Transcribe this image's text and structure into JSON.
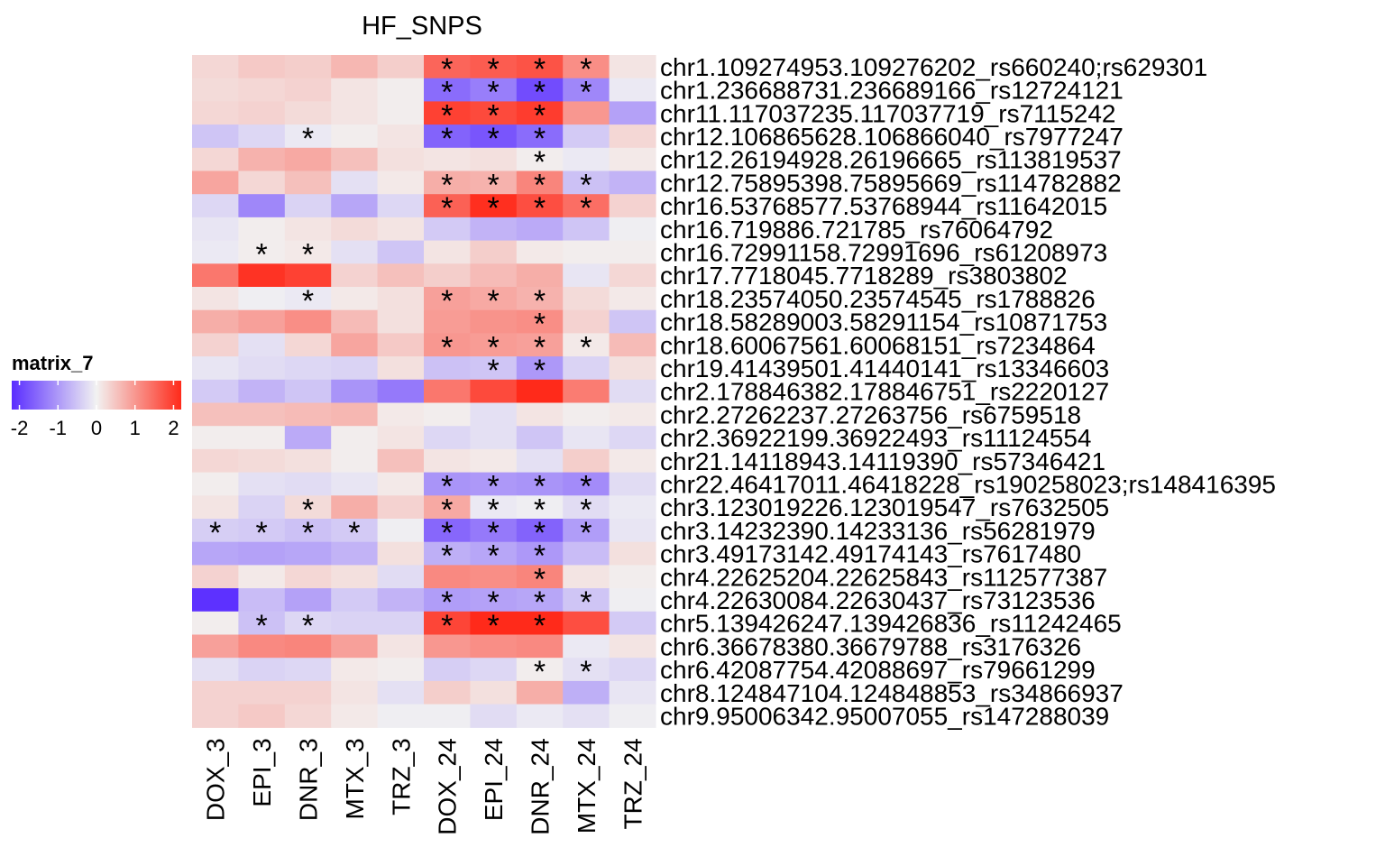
{
  "chart_data": {
    "type": "heatmap",
    "title": "HF_SNPS",
    "columns": [
      "DOX_3",
      "EPI_3",
      "DNR_3",
      "MTX_3",
      "TRZ_3",
      "DOX_24",
      "EPI_24",
      "DNR_24",
      "MTX_24",
      "TRZ_24"
    ],
    "rows": [
      "chr1.109274953.109276202_rs660240;rs629301",
      "chr1.236688731.236689166_rs12724121",
      "chr11.117037235.117037719_rs7115242",
      "chr12.106865628.106866040_rs7977247",
      "chr12.26194928.26196665_rs113819537",
      "chr12.75895398.75895669_rs114782882",
      "chr16.53768577.53768944_rs11642015",
      "chr16.719886.721785_rs76064792",
      "chr16.72991158.72991696_rs61208973",
      "chr17.7718045.7718289_rs3803802",
      "chr18.23574050.23574545_rs1788826",
      "chr18.58289003.58291154_rs10871753",
      "chr18.60067561.60068151_rs7234864",
      "chr19.41439501.41440141_rs13346603",
      "chr2.178846382.178846751_rs2220127",
      "chr2.27262237.27263756_rs6759518",
      "chr2.36922199.36922493_rs11124554",
      "chr21.14118943.14119390_rs57346421",
      "chr22.46417011.46418228_rs190258023;rs148416395",
      "chr3.123019226.123019547_rs7632505",
      "chr3.14232390.14233136_rs56281979",
      "chr3.49173142.49174143_rs7617480",
      "chr4.22625204.22625843_rs112577387",
      "chr4.22630084.22630437_rs73123536",
      "chr5.139426247.139426836_rs11242465",
      "chr6.36678380.36679788_rs3176326",
      "chr6.42087754.42088697_rs79661299",
      "chr8.124847104.124848853_rs34866937",
      "chr9.95006342.95007055_rs147288039"
    ],
    "values": [
      [
        0.3,
        0.45,
        0.4,
        0.65,
        0.4,
        1.55,
        1.65,
        1.75,
        1.1,
        0.15
      ],
      [
        0.25,
        0.3,
        0.35,
        0.15,
        0.05,
        -1.5,
        -1.3,
        -1.85,
        -1.2,
        -0.1
      ],
      [
        0.3,
        0.35,
        0.25,
        0.15,
        0.05,
        1.95,
        1.85,
        2.0,
        1.0,
        -0.9
      ],
      [
        -0.5,
        -0.3,
        -0.1,
        0.05,
        0.15,
        -1.6,
        -1.75,
        -1.5,
        -0.45,
        0.3
      ],
      [
        0.3,
        0.7,
        0.8,
        0.55,
        0.2,
        0.15,
        0.2,
        0.05,
        -0.1,
        0.1
      ],
      [
        0.85,
        0.3,
        0.55,
        -0.2,
        0.1,
        0.75,
        0.7,
        1.2,
        -0.55,
        -0.7
      ],
      [
        -0.3,
        -1.2,
        -0.35,
        -0.85,
        -0.3,
        1.6,
        2.15,
        1.8,
        1.45,
        0.35
      ],
      [
        -0.15,
        0.05,
        0.15,
        0.25,
        0.15,
        -0.45,
        -0.7,
        -0.8,
        -0.5,
        -0.05
      ],
      [
        -0.1,
        0.05,
        0.1,
        -0.2,
        -0.5,
        0.15,
        0.4,
        0.1,
        0.05,
        0.05
      ],
      [
        1.35,
        2.1,
        1.95,
        0.35,
        0.55,
        0.4,
        0.6,
        0.75,
        -0.15,
        0.3
      ],
      [
        0.15,
        -0.05,
        -0.1,
        0.1,
        0.2,
        0.9,
        0.8,
        0.7,
        0.25,
        0.1
      ],
      [
        0.75,
        0.9,
        1.1,
        0.6,
        0.2,
        0.95,
        1.05,
        1.1,
        0.35,
        -0.5
      ],
      [
        0.35,
        -0.2,
        0.3,
        0.85,
        0.45,
        1.0,
        0.95,
        0.9,
        0.1,
        0.6
      ],
      [
        -0.15,
        -0.25,
        -0.3,
        -0.35,
        0.2,
        -0.55,
        -0.5,
        -1.0,
        -0.35,
        0.2
      ],
      [
        -0.45,
        -0.7,
        -0.5,
        -1.05,
        -1.35,
        1.35,
        1.85,
        2.2,
        1.3,
        -0.25
      ],
      [
        0.55,
        0.55,
        0.6,
        0.65,
        0.1,
        0.05,
        -0.2,
        0.15,
        0.05,
        0.1
      ],
      [
        0.05,
        0.05,
        -0.8,
        0.05,
        0.15,
        -0.3,
        -0.2,
        -0.5,
        -0.15,
        -0.3
      ],
      [
        0.3,
        0.25,
        0.2,
        0.05,
        0.55,
        0.15,
        0.1,
        -0.2,
        0.4,
        0.1
      ],
      [
        0.05,
        -0.2,
        -0.25,
        -0.15,
        0.1,
        -1.05,
        -1.0,
        -1.05,
        -1.15,
        -0.25
      ],
      [
        0.15,
        -0.35,
        0.25,
        0.75,
        0.35,
        0.8,
        -0.1,
        -0.05,
        -0.25,
        -0.1
      ],
      [
        -0.4,
        -0.45,
        -0.55,
        -0.45,
        -0.05,
        -1.55,
        -1.35,
        -1.6,
        -0.95,
        -0.15
      ],
      [
        -0.85,
        -0.9,
        -0.85,
        -0.7,
        0.2,
        -0.75,
        -0.85,
        -1.0,
        -0.6,
        0.2
      ],
      [
        0.35,
        0.1,
        0.3,
        0.2,
        -0.25,
        1.15,
        1.1,
        1.2,
        0.15,
        0.05
      ],
      [
        -2.15,
        -0.6,
        -0.9,
        -0.45,
        -0.7,
        -0.95,
        -0.9,
        -0.85,
        -0.5,
        -0.05
      ],
      [
        0.05,
        -0.55,
        -0.3,
        -0.35,
        -0.35,
        1.9,
        2.25,
        2.25,
        1.8,
        -0.45
      ],
      [
        0.9,
        1.15,
        1.2,
        0.9,
        0.15,
        1.0,
        1.1,
        1.15,
        -0.1,
        0.15
      ],
      [
        -0.2,
        -0.35,
        -0.3,
        0.1,
        0.05,
        -0.4,
        -0.3,
        0.05,
        -0.2,
        -0.3
      ],
      [
        0.35,
        0.35,
        0.35,
        0.15,
        -0.2,
        0.4,
        0.2,
        0.75,
        -0.75,
        -0.15
      ],
      [
        0.35,
        0.45,
        0.3,
        0.1,
        -0.05,
        -0.05,
        -0.25,
        -0.1,
        -0.2,
        -0.05
      ]
    ],
    "significant": [
      [
        5,
        0
      ],
      [
        6,
        0
      ],
      [
        7,
        0
      ],
      [
        8,
        0
      ],
      [
        5,
        1
      ],
      [
        6,
        1
      ],
      [
        7,
        1
      ],
      [
        8,
        1
      ],
      [
        5,
        2
      ],
      [
        6,
        2
      ],
      [
        7,
        2
      ],
      [
        2,
        3
      ],
      [
        5,
        3
      ],
      [
        6,
        3
      ],
      [
        7,
        3
      ],
      [
        7,
        4
      ],
      [
        5,
        5
      ],
      [
        6,
        5
      ],
      [
        7,
        5
      ],
      [
        8,
        5
      ],
      [
        5,
        6
      ],
      [
        6,
        6
      ],
      [
        7,
        6
      ],
      [
        8,
        6
      ],
      [
        1,
        8
      ],
      [
        2,
        8
      ],
      [
        2,
        10
      ],
      [
        5,
        10
      ],
      [
        6,
        10
      ],
      [
        7,
        10
      ],
      [
        7,
        11
      ],
      [
        5,
        12
      ],
      [
        6,
        12
      ],
      [
        7,
        12
      ],
      [
        8,
        12
      ],
      [
        6,
        13
      ],
      [
        7,
        13
      ],
      [
        5,
        18
      ],
      [
        6,
        18
      ],
      [
        7,
        18
      ],
      [
        8,
        18
      ],
      [
        2,
        19
      ],
      [
        5,
        19
      ],
      [
        6,
        19
      ],
      [
        7,
        19
      ],
      [
        8,
        19
      ],
      [
        0,
        20
      ],
      [
        1,
        20
      ],
      [
        2,
        20
      ],
      [
        3,
        20
      ],
      [
        5,
        20
      ],
      [
        6,
        20
      ],
      [
        7,
        20
      ],
      [
        8,
        20
      ],
      [
        5,
        21
      ],
      [
        6,
        21
      ],
      [
        7,
        21
      ],
      [
        7,
        22
      ],
      [
        5,
        23
      ],
      [
        6,
        23
      ],
      [
        7,
        23
      ],
      [
        8,
        23
      ],
      [
        1,
        24
      ],
      [
        2,
        24
      ],
      [
        5,
        24
      ],
      [
        6,
        24
      ],
      [
        7,
        24
      ],
      [
        7,
        26
      ],
      [
        8,
        26
      ]
    ],
    "significance_mark": "*",
    "legend": {
      "title": "matrix_7",
      "ticks": [
        -2,
        -1,
        0,
        1,
        2
      ],
      "tick_labels": [
        "-2",
        "-1",
        "0",
        "1",
        "2"
      ],
      "range": [
        -2.2,
        2.2
      ],
      "colors": {
        "low": "#5a2dff",
        "mid": "#f2f2f2",
        "high": "#ff2a1a"
      },
      "position": "left"
    }
  }
}
